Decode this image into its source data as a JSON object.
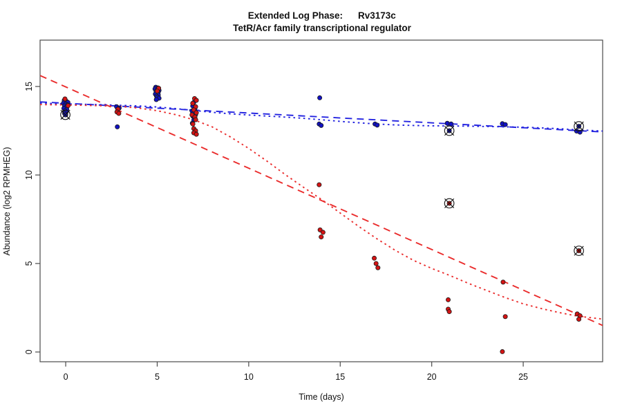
{
  "title": {
    "prefix": "Extended Log Phase:",
    "gene": "Rv3173c",
    "subtitle": "TetR/Acr family transcriptional regulator"
  },
  "axes": {
    "x": {
      "label": "Time (days)",
      "ticks": [
        0,
        5,
        10,
        15,
        20,
        25
      ]
    },
    "y": {
      "label": "Abundance (log2 RPMHEG)",
      "ticks": [
        0,
        5,
        10,
        15
      ]
    }
  },
  "colors": {
    "control_point": "#1212c4",
    "treatment_point": "#d41414",
    "control_line": "#2323e0",
    "treatment_line": "#ea2c2c",
    "marker_outline": "#1a1a1a",
    "flag_symbol": "#111111",
    "axis": "#4a4a4a"
  },
  "chart_data": {
    "type": "scatter",
    "title": "Extended Log Phase: Rv3173c",
    "subtitle": "TetR/Acr family transcriptional regulator",
    "xlabel": "Time (days)",
    "ylabel": "Abundance (log2 RPMHEG)",
    "xlim": [
      -1.4,
      29.34
    ],
    "ylim": [
      -0.55,
      17.62
    ],
    "x_ticks": [
      0,
      5,
      10,
      15,
      20,
      25
    ],
    "y_ticks": [
      0,
      5,
      10,
      15
    ],
    "grid": false,
    "legend": false,
    "series": [
      {
        "name": "control",
        "marker": "circle",
        "color_key": "control_point",
        "points": [
          [
            -0.08,
            14.22
          ],
          [
            0.04,
            14.16
          ],
          [
            0.12,
            14.1
          ],
          [
            -0.12,
            14.06
          ],
          [
            0.0,
            14.0
          ],
          [
            0.1,
            13.96
          ],
          [
            -0.06,
            13.9
          ],
          [
            0.08,
            13.87
          ],
          [
            0.0,
            13.8
          ],
          [
            -0.1,
            13.76
          ],
          [
            0.06,
            13.7
          ],
          [
            -0.04,
            13.63
          ],
          [
            0.02,
            13.55
          ],
          [
            -0.06,
            13.48
          ],
          [
            0.0,
            13.4
          ],
          [
            2.78,
            13.86
          ],
          [
            2.92,
            13.78
          ],
          [
            2.82,
            12.72
          ],
          [
            4.92,
            14.96
          ],
          [
            5.04,
            14.92
          ],
          [
            4.88,
            14.86
          ],
          [
            5.0,
            14.82
          ],
          [
            5.1,
            14.78
          ],
          [
            4.94,
            14.72
          ],
          [
            5.06,
            14.68
          ],
          [
            5.0,
            14.62
          ],
          [
            4.9,
            14.57
          ],
          [
            5.06,
            14.52
          ],
          [
            4.96,
            14.46
          ],
          [
            5.0,
            14.4
          ],
          [
            5.1,
            14.34
          ],
          [
            4.95,
            14.26
          ],
          [
            7.0,
            14.1
          ],
          [
            6.94,
            13.9
          ],
          [
            7.06,
            13.76
          ],
          [
            6.9,
            13.62
          ],
          [
            7.0,
            13.52
          ],
          [
            7.1,
            13.42
          ],
          [
            6.95,
            13.32
          ],
          [
            7.05,
            13.22
          ],
          [
            7.0,
            13.1
          ],
          [
            6.92,
            12.92
          ],
          [
            13.88,
            14.36
          ],
          [
            13.85,
            12.88
          ],
          [
            13.96,
            12.8
          ],
          [
            16.9,
            12.88
          ],
          [
            17.02,
            12.82
          ],
          [
            20.85,
            12.92
          ],
          [
            21.06,
            12.88
          ],
          [
            23.86,
            12.9
          ],
          [
            24.02,
            12.85
          ],
          [
            27.92,
            12.48
          ],
          [
            28.1,
            12.42
          ]
        ]
      },
      {
        "name": "treatment",
        "marker": "circle",
        "color_key": "treatment_point",
        "points": [
          [
            -0.04,
            14.3
          ],
          [
            0.13,
            13.92
          ],
          [
            2.86,
            13.72
          ],
          [
            2.8,
            13.56
          ],
          [
            2.9,
            13.48
          ],
          [
            5.08,
            14.9
          ],
          [
            5.0,
            14.74
          ],
          [
            7.04,
            14.32
          ],
          [
            7.14,
            14.22
          ],
          [
            6.94,
            14.05
          ],
          [
            7.1,
            13.86
          ],
          [
            7.0,
            13.68
          ],
          [
            7.14,
            13.52
          ],
          [
            6.9,
            13.4
          ],
          [
            7.06,
            13.28
          ],
          [
            7.1,
            13.12
          ],
          [
            6.95,
            12.88
          ],
          [
            7.0,
            12.62
          ],
          [
            7.1,
            12.5
          ],
          [
            7.0,
            12.38
          ],
          [
            7.14,
            12.3
          ],
          [
            13.85,
            9.45
          ],
          [
            13.9,
            6.9
          ],
          [
            14.06,
            6.76
          ],
          [
            13.96,
            6.5
          ],
          [
            16.86,
            5.3
          ],
          [
            16.96,
            5.0
          ],
          [
            17.06,
            4.76
          ],
          [
            20.9,
            2.95
          ],
          [
            20.9,
            2.42
          ],
          [
            20.96,
            2.28
          ],
          [
            23.9,
            3.95
          ],
          [
            24.02,
            2.0
          ],
          [
            23.86,
            0.02
          ],
          [
            27.95,
            2.15
          ],
          [
            28.1,
            2.05
          ],
          [
            28.04,
            1.85
          ]
        ]
      },
      {
        "name": "control-flagged",
        "marker": "circle-x",
        "color_key": "control_point",
        "points": [
          [
            -0.02,
            13.4
          ],
          [
            20.96,
            12.5
          ],
          [
            28.04,
            12.75
          ]
        ]
      },
      {
        "name": "treatment-flagged",
        "marker": "circle-x",
        "color_key": "treatment_point",
        "points": [
          [
            20.96,
            8.4
          ],
          [
            28.04,
            5.72
          ]
        ]
      }
    ],
    "fits": [
      {
        "name": "control-linear-fit",
        "color_key": "control_line",
        "style": "longdash",
        "points": [
          [
            -1.4,
            14.13
          ],
          [
            29.34,
            12.43
          ]
        ]
      },
      {
        "name": "treatment-linear-fit",
        "color_key": "treatment_line",
        "style": "longdash",
        "points": [
          [
            -1.4,
            15.62
          ],
          [
            29.34,
            1.5
          ]
        ]
      },
      {
        "name": "control-loess-fit",
        "color_key": "control_line",
        "style": "dotted",
        "points": [
          [
            -1.4,
            14.06
          ],
          [
            0,
            14.02
          ],
          [
            2,
            13.97
          ],
          [
            4,
            13.9
          ],
          [
            5,
            13.84
          ],
          [
            6,
            13.75
          ],
          [
            7,
            13.65
          ],
          [
            8,
            13.54
          ],
          [
            9,
            13.46
          ],
          [
            10,
            13.39
          ],
          [
            11,
            13.33
          ],
          [
            12,
            13.27
          ],
          [
            13,
            13.2
          ],
          [
            14,
            13.12
          ],
          [
            15,
            13.03
          ],
          [
            16,
            12.95
          ],
          [
            17,
            12.88
          ],
          [
            18,
            12.83
          ],
          [
            19,
            12.8
          ],
          [
            20,
            12.78
          ],
          [
            21,
            12.77
          ],
          [
            22,
            12.76
          ],
          [
            23,
            12.74
          ],
          [
            24,
            12.72
          ],
          [
            25,
            12.7
          ],
          [
            26,
            12.66
          ],
          [
            27,
            12.61
          ],
          [
            28,
            12.55
          ],
          [
            29.34,
            12.48
          ]
        ]
      },
      {
        "name": "treatment-loess-fit",
        "color_key": "treatment_line",
        "style": "dotted",
        "points": [
          [
            -1.4,
            13.98
          ],
          [
            0,
            13.96
          ],
          [
            1,
            13.94
          ],
          [
            2,
            13.91
          ],
          [
            3,
            13.87
          ],
          [
            4,
            13.78
          ],
          [
            5,
            13.63
          ],
          [
            6,
            13.41
          ],
          [
            7,
            13.12
          ],
          [
            8,
            12.72
          ],
          [
            9,
            12.15
          ],
          [
            10,
            11.5
          ],
          [
            11,
            10.78
          ],
          [
            12,
            10.02
          ],
          [
            13,
            9.3
          ],
          [
            14,
            8.6
          ],
          [
            15,
            7.85
          ],
          [
            16,
            7.1
          ],
          [
            17,
            6.4
          ],
          [
            18,
            5.75
          ],
          [
            19,
            5.18
          ],
          [
            20,
            4.72
          ],
          [
            21,
            4.32
          ],
          [
            22,
            3.88
          ],
          [
            23,
            3.48
          ],
          [
            24,
            3.08
          ],
          [
            25,
            2.72
          ],
          [
            26,
            2.45
          ],
          [
            27,
            2.22
          ],
          [
            28,
            2.02
          ],
          [
            29.34,
            1.86
          ]
        ]
      }
    ]
  }
}
